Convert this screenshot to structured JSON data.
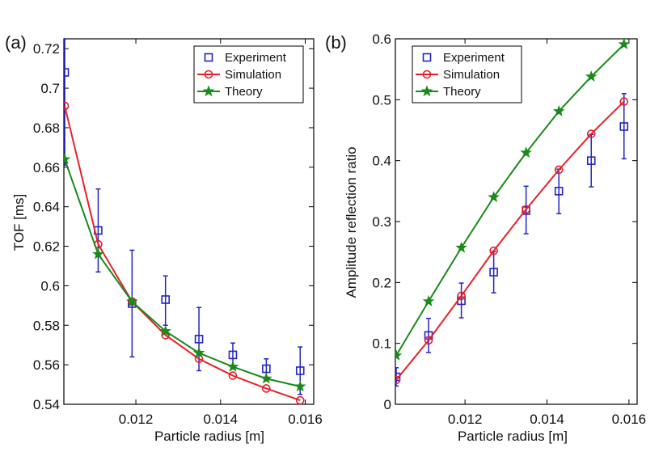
{
  "chart_data": [
    {
      "type": "line",
      "panel_label": "(a)",
      "title": "",
      "xlabel": "Particle radius [m]",
      "ylabel": "TOF [ms]",
      "xlim": [
        0.0103,
        0.0162
      ],
      "ylim": [
        0.54,
        0.725
      ],
      "xticks": [
        0.012,
        0.014,
        0.016
      ],
      "xtick_labels": [
        "0.012",
        "0.014",
        "0.016"
      ],
      "yticks": [
        0.54,
        0.56,
        0.58,
        0.6,
        0.62,
        0.64,
        0.66,
        0.68,
        0.7,
        0.72
      ],
      "ytick_labels": [
        "0.54",
        "0.56",
        "0.58",
        "0.6",
        "0.62",
        "0.64",
        "0.66",
        "0.68",
        "0.7",
        "0.72"
      ],
      "grid": false,
      "legend_position": "top-right",
      "series": [
        {
          "name": "Experiment",
          "kind": "errorbar",
          "color": "#2323c8",
          "marker": "square",
          "x": [
            0.01032,
            0.01111,
            0.01191,
            0.0127,
            0.01349,
            0.01429,
            0.01508,
            0.01588
          ],
          "y": [
            0.708,
            0.628,
            0.591,
            0.593,
            0.573,
            0.565,
            0.558,
            0.557
          ],
          "err_low": [
            0.661,
            0.607,
            0.564,
            0.58,
            0.557,
            0.558,
            0.552,
            0.545
          ],
          "err_high": [
            0.725,
            0.649,
            0.618,
            0.605,
            0.589,
            0.571,
            0.563,
            0.569
          ]
        },
        {
          "name": "Simulation",
          "kind": "line",
          "color": "#e8202a",
          "marker": "circle",
          "x": [
            0.01032,
            0.01111,
            0.01191,
            0.0127,
            0.01349,
            0.01429,
            0.01508,
            0.01588
          ],
          "y": [
            0.691,
            0.621,
            0.592,
            0.575,
            0.563,
            0.5545,
            0.548,
            0.542
          ]
        },
        {
          "name": "Theory",
          "kind": "line",
          "color": "#1a8a1a",
          "marker": "star",
          "x": [
            0.01032,
            0.01111,
            0.01191,
            0.0127,
            0.01349,
            0.01429,
            0.01508,
            0.01588
          ],
          "y": [
            0.664,
            0.616,
            0.592,
            0.577,
            0.566,
            0.559,
            0.553,
            0.549
          ]
        }
      ]
    },
    {
      "type": "line",
      "panel_label": "(b)",
      "title": "",
      "xlabel": "Particle radius [m]",
      "ylabel": "Amplitude reflection ratio",
      "xlim": [
        0.0103,
        0.0162
      ],
      "ylim": [
        0,
        0.6
      ],
      "xticks": [
        0.012,
        0.014,
        0.016
      ],
      "xtick_labels": [
        "0.012",
        "0.014",
        "0.016"
      ],
      "yticks": [
        0,
        0.1,
        0.2,
        0.3,
        0.4,
        0.5,
        0.6
      ],
      "ytick_labels": [
        "0",
        "0.1",
        "0.2",
        "0.3",
        "0.4",
        "0.5",
        "0.6"
      ],
      "grid": false,
      "legend_position": "top-left",
      "series": [
        {
          "name": "Experiment",
          "kind": "errorbar",
          "color": "#2323c8",
          "marker": "square",
          "x": [
            0.01032,
            0.01111,
            0.01191,
            0.0127,
            0.01349,
            0.01429,
            0.01508,
            0.01588
          ],
          "y": [
            0.045,
            0.113,
            0.17,
            0.217,
            0.318,
            0.35,
            0.4,
            0.456
          ],
          "err_low": [
            0.03,
            0.085,
            0.142,
            0.183,
            0.28,
            0.313,
            0.357,
            0.403
          ],
          "err_high": [
            0.06,
            0.141,
            0.199,
            0.251,
            0.358,
            0.386,
            0.443,
            0.51
          ]
        },
        {
          "name": "Simulation",
          "kind": "line",
          "color": "#e8202a",
          "marker": "circle",
          "x": [
            0.01032,
            0.01111,
            0.01191,
            0.0127,
            0.01349,
            0.01429,
            0.01508,
            0.01588
          ],
          "y": [
            0.04,
            0.105,
            0.178,
            0.252,
            0.32,
            0.385,
            0.444,
            0.497
          ]
        },
        {
          "name": "Theory",
          "kind": "line",
          "color": "#1a8a1a",
          "marker": "star",
          "x": [
            0.01032,
            0.01111,
            0.01191,
            0.0127,
            0.01349,
            0.01429,
            0.01508,
            0.01588
          ],
          "y": [
            0.08,
            0.169,
            0.257,
            0.34,
            0.413,
            0.481,
            0.538,
            0.591
          ]
        }
      ]
    }
  ]
}
